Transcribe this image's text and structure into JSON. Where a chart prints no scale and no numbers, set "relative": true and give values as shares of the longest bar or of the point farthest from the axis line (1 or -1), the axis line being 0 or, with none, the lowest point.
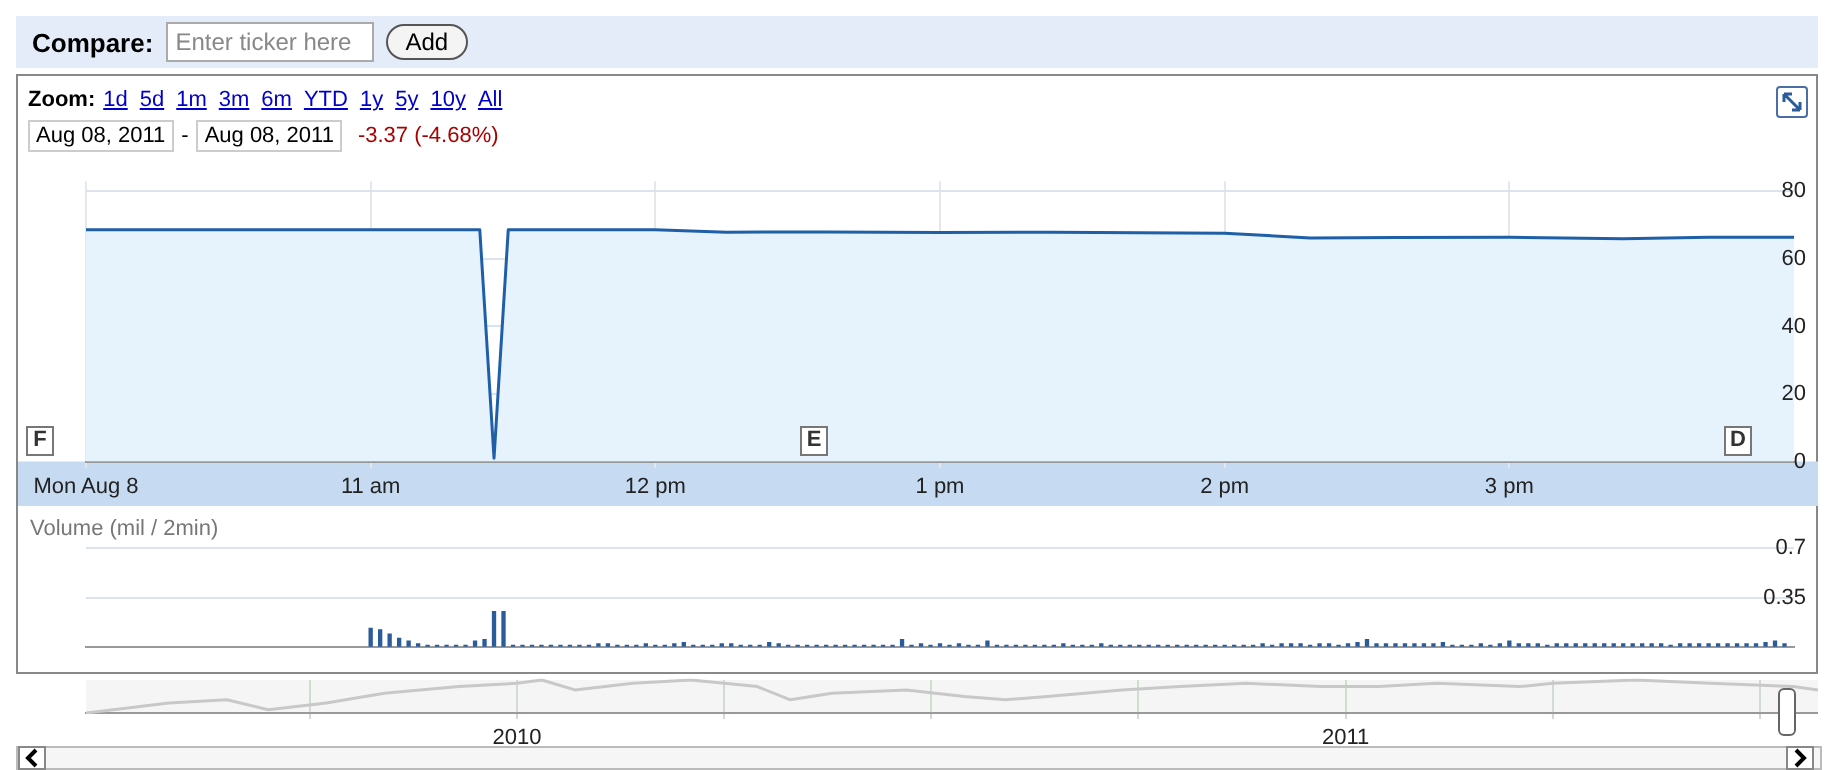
{
  "chart_data": [
    {
      "type": "area",
      "x": [
        "2011-08-08T10:00",
        "2011-08-08T11:00",
        "2011-08-08T11:23",
        "2011-08-08T11:26",
        "2011-08-08T11:29",
        "2011-08-08T12:00",
        "2011-08-08T12:15",
        "2011-08-08T12:36",
        "2011-08-08T13:00",
        "2011-08-08T13:24",
        "2011-08-08T14:00",
        "2011-08-08T14:18",
        "2011-08-08T14:36",
        "2011-08-08T15:00",
        "2011-08-08T15:24",
        "2011-08-08T15:42",
        "2011-08-08T16:00"
      ],
      "series": [
        {
          "color": "#1f5fa8",
          "values": [
            68.6,
            68.6,
            68.6,
            1,
            68.6,
            68.6,
            67.9,
            68.0,
            67.8,
            67.9,
            67.6,
            66.2,
            66.3,
            66.4,
            66.0,
            66.4,
            66.4
          ]
        }
      ],
      "xlim": [
        "2011-08-08T10:00",
        "2011-08-08T16:00"
      ],
      "xticks": [
        {
          "value": "2011-08-08T10:00",
          "label": "Mon Aug 8"
        },
        {
          "value": "2011-08-08T11:00",
          "label": "11 am"
        },
        {
          "value": "2011-08-08T12:00",
          "label": "12 pm"
        },
        {
          "value": "2011-08-08T13:00",
          "label": "1 pm"
        },
        {
          "value": "2011-08-08T14:00",
          "label": "2 pm"
        },
        {
          "value": "2011-08-08T15:00",
          "label": "3 pm"
        }
      ],
      "ylim": [
        0,
        83
      ],
      "yticks": [
        0,
        20,
        40,
        60,
        80
      ],
      "grid": true,
      "annotations": [
        "Compare:",
        "Enter ticker here",
        "Add",
        "Zoom:",
        "1d",
        "5d",
        "1m",
        "3m",
        "6m",
        "YTD",
        "1y",
        "5y",
        "10y",
        "All",
        "Aug 08, 2011",
        "-",
        "Aug 08, 2011",
        "-3.37 (-4.68%)",
        "F",
        "E",
        "D"
      ]
    },
    {
      "type": "bar",
      "ylabel": "Volume (mil / 2min)",
      "x": [
        "2011-08-08T11:00",
        "2011-08-08T11:02",
        "2011-08-08T11:04",
        "2011-08-08T11:06",
        "2011-08-08T11:08",
        "2011-08-08T11:10",
        "2011-08-08T11:12",
        "2011-08-08T11:14",
        "2011-08-08T11:16",
        "2011-08-08T11:18",
        "2011-08-08T11:20",
        "2011-08-08T11:22",
        "2011-08-08T11:24",
        "2011-08-08T11:26",
        "2011-08-08T11:28",
        "2011-08-08T11:30",
        "2011-08-08T11:32",
        "2011-08-08T11:34",
        "2011-08-08T11:36",
        "2011-08-08T11:38",
        "2011-08-08T11:40",
        "2011-08-08T11:42",
        "2011-08-08T11:44",
        "2011-08-08T11:46",
        "2011-08-08T11:48",
        "2011-08-08T11:50",
        "2011-08-08T11:52",
        "2011-08-08T11:54",
        "2011-08-08T11:56",
        "2011-08-08T11:58",
        "2011-08-08T12:00",
        "2011-08-08T12:02",
        "2011-08-08T12:04",
        "2011-08-08T12:06",
        "2011-08-08T12:08",
        "2011-08-08T12:10",
        "2011-08-08T12:12",
        "2011-08-08T12:14",
        "2011-08-08T12:16",
        "2011-08-08T12:18",
        "2011-08-08T12:20",
        "2011-08-08T12:22",
        "2011-08-08T12:24",
        "2011-08-08T12:26",
        "2011-08-08T12:28",
        "2011-08-08T12:30",
        "2011-08-08T12:32",
        "2011-08-08T12:34",
        "2011-08-08T12:36",
        "2011-08-08T12:38",
        "2011-08-08T12:40",
        "2011-08-08T12:42",
        "2011-08-08T12:44",
        "2011-08-08T12:46",
        "2011-08-08T12:48",
        "2011-08-08T12:50",
        "2011-08-08T12:52",
        "2011-08-08T12:54",
        "2011-08-08T12:56",
        "2011-08-08T12:58",
        "2011-08-08T13:00",
        "2011-08-08T13:02",
        "2011-08-08T13:04",
        "2011-08-08T13:06",
        "2011-08-08T13:08",
        "2011-08-08T13:10",
        "2011-08-08T13:12",
        "2011-08-08T13:14",
        "2011-08-08T13:16",
        "2011-08-08T13:18",
        "2011-08-08T13:20",
        "2011-08-08T13:22",
        "2011-08-08T13:24",
        "2011-08-08T13:26",
        "2011-08-08T13:28",
        "2011-08-08T13:30",
        "2011-08-08T13:32",
        "2011-08-08T13:34",
        "2011-08-08T13:36",
        "2011-08-08T13:38",
        "2011-08-08T13:40",
        "2011-08-08T13:42",
        "2011-08-08T13:44",
        "2011-08-08T13:46",
        "2011-08-08T13:48",
        "2011-08-08T13:50",
        "2011-08-08T13:52",
        "2011-08-08T13:54",
        "2011-08-08T13:56",
        "2011-08-08T13:58",
        "2011-08-08T14:00",
        "2011-08-08T14:02",
        "2011-08-08T14:04",
        "2011-08-08T14:06",
        "2011-08-08T14:08",
        "2011-08-08T14:10",
        "2011-08-08T14:12",
        "2011-08-08T14:14",
        "2011-08-08T14:16",
        "2011-08-08T14:18",
        "2011-08-08T14:20",
        "2011-08-08T14:22",
        "2011-08-08T14:24",
        "2011-08-08T14:26",
        "2011-08-08T14:28",
        "2011-08-08T14:30",
        "2011-08-08T14:32",
        "2011-08-08T14:34",
        "2011-08-08T14:36",
        "2011-08-08T14:38",
        "2011-08-08T14:40",
        "2011-08-08T14:42",
        "2011-08-08T14:44",
        "2011-08-08T14:46",
        "2011-08-08T14:48",
        "2011-08-08T14:50",
        "2011-08-08T14:52",
        "2011-08-08T14:54",
        "2011-08-08T14:56",
        "2011-08-08T14:58",
        "2011-08-08T15:00",
        "2011-08-08T15:02",
        "2011-08-08T15:04",
        "2011-08-08T15:06",
        "2011-08-08T15:08",
        "2011-08-08T15:10",
        "2011-08-08T15:12",
        "2011-08-08T15:14",
        "2011-08-08T15:16",
        "2011-08-08T15:18",
        "2011-08-08T15:20",
        "2011-08-08T15:22",
        "2011-08-08T15:24",
        "2011-08-08T15:26",
        "2011-08-08T15:28",
        "2011-08-08T15:30",
        "2011-08-08T15:32",
        "2011-08-08T15:34",
        "2011-08-08T15:36",
        "2011-08-08T15:38",
        "2011-08-08T15:40",
        "2011-08-08T15:42",
        "2011-08-08T15:44",
        "2011-08-08T15:46",
        "2011-08-08T15:48",
        "2011-08-08T15:50",
        "2011-08-08T15:52",
        "2011-08-08T15:54",
        "2011-08-08T15:56",
        "2011-08-08T15:58"
      ],
      "series": [
        {
          "color": "#2a5b9a",
          "values": [
            0.13,
            0.12,
            0.09,
            0.06,
            0.04,
            0.02,
            0.01,
            0.01,
            0.01,
            0.01,
            0.01,
            0.04,
            0.05,
            0.25,
            0.25,
            0.01,
            0.01,
            0.01,
            0.01,
            0.01,
            0.01,
            0.01,
            0.01,
            0.01,
            0.02,
            0.02,
            0.01,
            0.01,
            0.01,
            0.02,
            0.01,
            0.01,
            0.02,
            0.03,
            0.01,
            0.01,
            0.01,
            0.02,
            0.02,
            0.01,
            0.01,
            0.01,
            0.03,
            0.02,
            0.01,
            0.01,
            0.01,
            0.01,
            0.01,
            0.01,
            0.01,
            0.01,
            0.01,
            0.01,
            0.01,
            0.01,
            0.05,
            0.01,
            0.02,
            0.01,
            0.02,
            0.01,
            0.02,
            0.01,
            0.01,
            0.04,
            0.01,
            0.01,
            0.01,
            0.01,
            0.01,
            0.01,
            0.01,
            0.02,
            0.01,
            0.01,
            0.01,
            0.02,
            0.01,
            0.01,
            0.01,
            0.01,
            0.01,
            0.01,
            0.01,
            0.01,
            0.01,
            0.01,
            0.01,
            0.01,
            0.01,
            0.01,
            0.01,
            0.01,
            0.02,
            0.01,
            0.02,
            0.02,
            0.02,
            0.01,
            0.02,
            0.02,
            0.01,
            0.02,
            0.03,
            0.05,
            0.02,
            0.02,
            0.02,
            0.02,
            0.02,
            0.02,
            0.02,
            0.03,
            0.01,
            0.01,
            0.01,
            0.02,
            0.01,
            0.02,
            0.04,
            0.02,
            0.02,
            0.02,
            0.01,
            0.02,
            0.02,
            0.02,
            0.02,
            0.02,
            0.02,
            0.02,
            0.02,
            0.02,
            0.02,
            0.02,
            0.02,
            0.01,
            0.02,
            0.02,
            0.02,
            0.02,
            0.02,
            0.02,
            0.02,
            0.02,
            0.02,
            0.03,
            0.04,
            0.02
          ]
        }
      ],
      "xlim": [
        "2011-08-08T10:00",
        "2011-08-08T16:00"
      ],
      "ylim": [
        0,
        0.73
      ],
      "yticks": [
        0.35,
        0.7
      ],
      "grid": "y",
      "tick_labels": "y"
    },
    {
      "type": "line",
      "relative": true,
      "x": [
        2009.48,
        2009.58,
        2009.65,
        2009.7,
        2009.77,
        2009.84,
        2009.93,
        2010.0,
        2010.03,
        2010.07,
        2010.14,
        2010.21,
        2010.29,
        2010.33,
        2010.38,
        2010.47,
        2010.54,
        2010.59,
        2010.64,
        2010.73,
        2010.8,
        2010.88,
        2010.97,
        2011.04,
        2011.11,
        2011.21,
        2011.25,
        2011.35,
        2011.44,
        2011.54,
        2011.57
      ],
      "series": [
        {
          "color": "#c8c8c8",
          "values": [
            0,
            0.3,
            0.4,
            0.1,
            0.3,
            0.6,
            0.8,
            0.9,
            1,
            0.7,
            0.9,
            1,
            0.8,
            0.4,
            0.6,
            0.7,
            0.5,
            0.4,
            0.5,
            0.7,
            0.8,
            0.9,
            0.8,
            0.8,
            0.9,
            0.8,
            0.9,
            1,
            0.9,
            0.8,
            0.7
          ]
        }
      ],
      "xlim": [
        2009.48,
        2011.57
      ],
      "xticks": [
        {
          "value": 2009.75,
          "label": null
        },
        2010,
        {
          "value": 2010.25,
          "label": null
        },
        {
          "value": 2010.5,
          "label": null
        },
        {
          "value": 2010.75,
          "label": null
        },
        2011,
        {
          "value": 2011.25,
          "label": null
        },
        {
          "value": 2011.5,
          "label": null
        }
      ],
      "grid": "x",
      "tick_labels": "x"
    }
  ]
}
